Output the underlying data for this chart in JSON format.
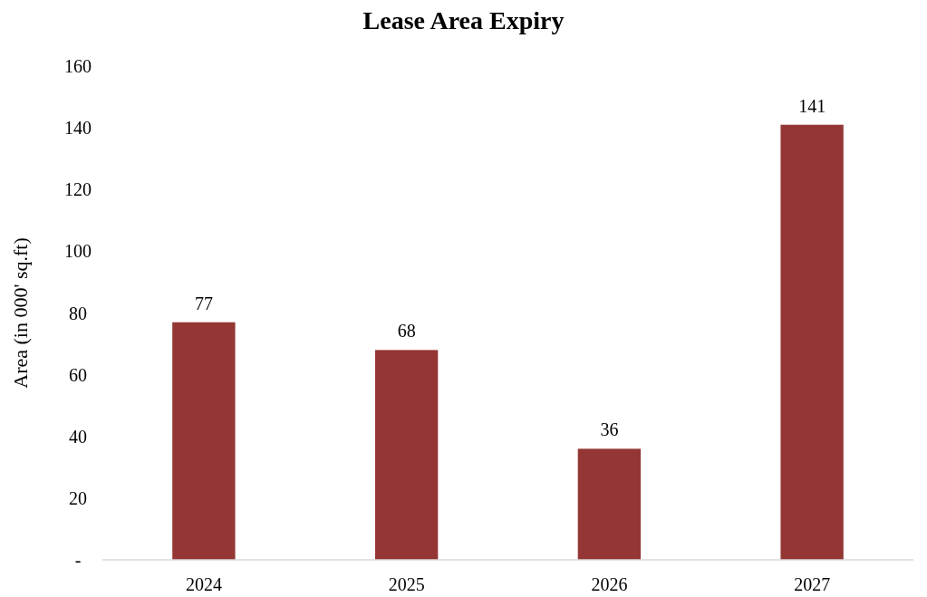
{
  "chart_data": {
    "type": "bar",
    "title": "Lease Area Expiry",
    "ylabel": "Area (in 000' sq.ft)",
    "categories": [
      "2024",
      "2025",
      "2026",
      "2027"
    ],
    "values": [
      77,
      68,
      36,
      141
    ],
    "color": "#943634",
    "ylim": [
      0,
      160
    ],
    "yticks": [
      {
        "value": 0,
        "label": "-"
      },
      20,
      40,
      60,
      80,
      100,
      120,
      140,
      160
    ],
    "data_labels": true,
    "grid": false
  }
}
